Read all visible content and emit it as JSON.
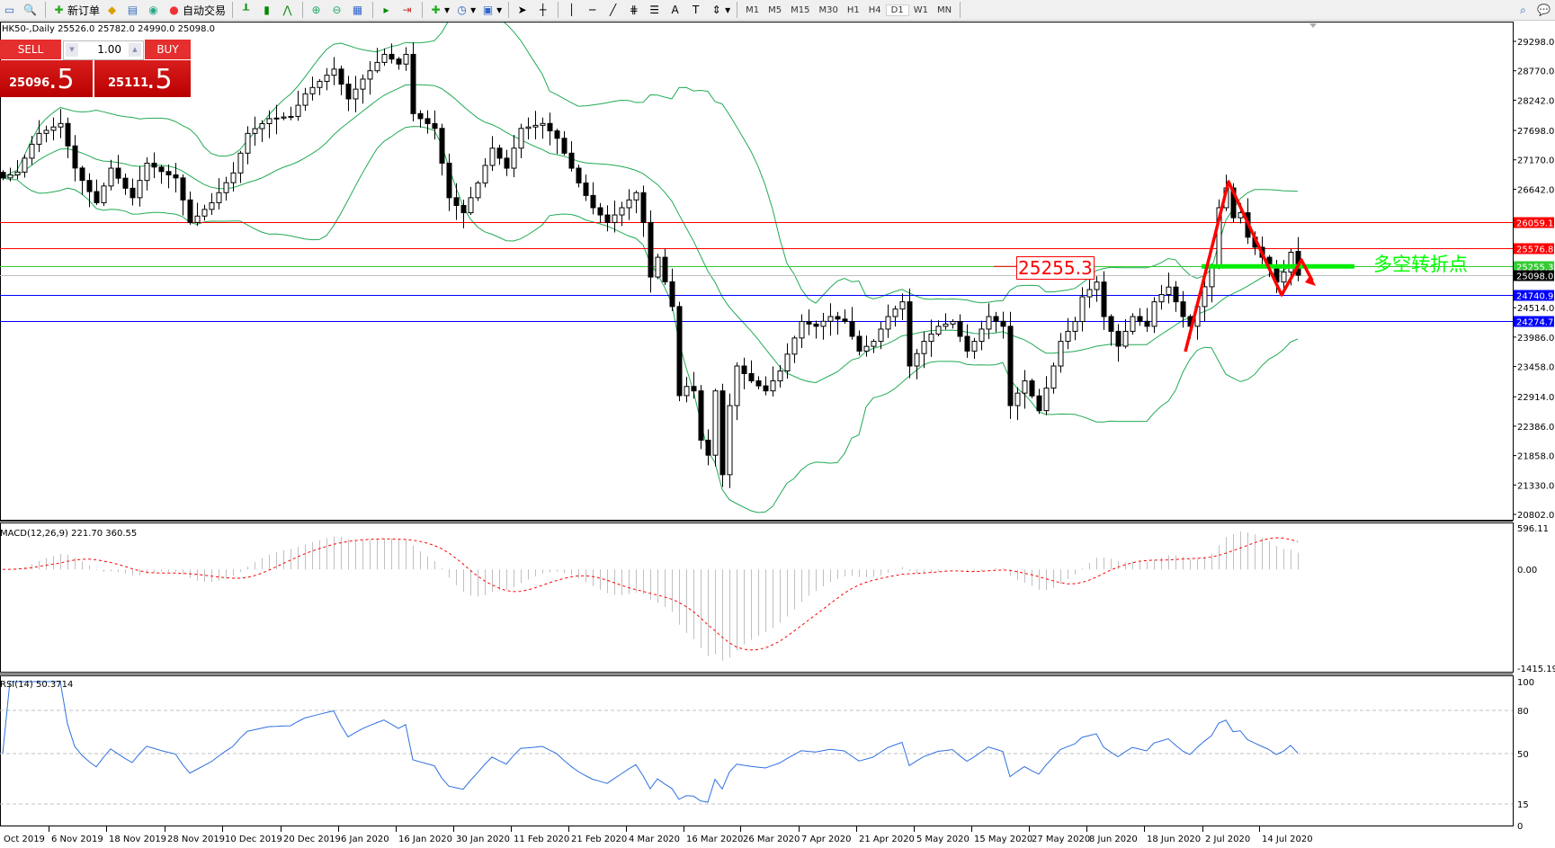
{
  "toolbar": {
    "new_order": "新订单",
    "auto_trading": "自动交易",
    "timeframes": [
      "M1",
      "M5",
      "M15",
      "M30",
      "H1",
      "H4",
      "D1",
      "W1",
      "MN"
    ],
    "active_timeframe": "D1"
  },
  "chart": {
    "title": "HK50-,Daily  25526.0 25782.0 24990.0 25098.0"
  },
  "one_click": {
    "sell_label": "SELL",
    "buy_label": "BUY",
    "lot": "1.00",
    "sell_price_main": "25096",
    "sell_price_pip": ".5",
    "buy_price_main": "25111",
    "buy_price_pip": ".5"
  },
  "annotations": {
    "level_label": "25255.3",
    "pivot_text": "多空转折点"
  },
  "indicators": {
    "macd_label": "MACD(12,26,9) 221.70 360.55",
    "rsi_label": "RSI(14) 50.3714"
  },
  "chart_data": {
    "type": "candlestick",
    "symbol": "HK50-",
    "timeframe": "Daily",
    "last_bar": {
      "open": 25526.0,
      "high": 25782.0,
      "low": 24990.0,
      "close": 25098.0
    },
    "closes": [
      26845,
      26900,
      26950,
      27200,
      27450,
      27645,
      27700,
      27760,
      27823,
      27420,
      27023,
      26800,
      26600,
      26400,
      26700,
      27020,
      26840,
      26660,
      26490,
      26800,
      27110,
      27040,
      26960,
      26900,
      26845,
      26450,
      26045,
      26160,
      26280,
      26400,
      26580,
      26760,
      26935,
      27290,
      27645,
      27730,
      27820,
      27910,
      27920,
      27940,
      27950,
      28150,
      28356,
      28470,
      28580,
      28690,
      28800,
      28530,
      28265,
      28440,
      28620,
      28770,
      28920,
      29065,
      28980,
      28890,
      29065,
      28000,
      27910,
      27820,
      27735,
      27110,
      26490,
      26350,
      26220,
      26490,
      26755,
      27070,
      27380,
      27200,
      27020,
      27380,
      27735,
      27760,
      27790,
      27823,
      27690,
      27557,
      27290,
      27020,
      26755,
      26530,
      26310,
      26180,
      26045,
      26180,
      26310,
      26450,
      26580,
      26045,
      25065,
      25420,
      24980,
      24535,
      22935,
      23100,
      23020,
      22135,
      21865,
      23020,
      21515,
      22756,
      23467,
      23330,
      23200,
      23110,
      23020,
      23200,
      23378,
      23680,
      23970,
      24267,
      24220,
      24180,
      24270,
      24355,
      24310,
      24267,
      24000,
      23735,
      23820,
      23910,
      24130,
      24355,
      24490,
      24620,
      23467,
      23690,
      23910,
      24040,
      24180,
      24220,
      24267,
      24000,
      23735,
      23910,
      24130,
      24355,
      24270,
      24180,
      22756,
      22980,
      23200,
      22930,
      22665,
      23070,
      23467,
      23910,
      24090,
      24267,
      24710,
      24840,
      24975,
      24355,
      24090,
      23823,
      24090,
      24355,
      24270,
      24180,
      24620,
      24750,
      24885,
      24620,
      24355,
      24180,
      24535,
      24890,
      25245,
      26310,
      26665,
      26130,
      26220,
      25780,
      25600,
      25420,
      25245,
      24975,
      25155,
      25510,
      25098
    ],
    "price_axis_ticks": [
      "29298.0",
      "28770.0",
      "28242.0",
      "27698.0",
      "27170.0",
      "26642.0",
      "24514.0",
      "23986.0",
      "23458.0",
      "22914.0",
      "22386.0",
      "21858.0",
      "21330.0",
      "20802.0"
    ],
    "ylim": [
      20802.0,
      29298.0
    ],
    "levels": [
      {
        "price": "26059.1",
        "color": "#ff0000"
      },
      {
        "price": "25576.8",
        "color": "#ff0000"
      },
      {
        "price": "25255.3",
        "color": "#33cc33"
      },
      {
        "price": "25098.0",
        "color": "#000000"
      },
      {
        "price": "24740.9",
        "color": "#0000ff"
      },
      {
        "price": "24274.7",
        "color": "#0000ff"
      }
    ],
    "date_labels": [
      "Oct 2019",
      "6 Nov 2019",
      "18 Nov 2019",
      "28 Nov 2019",
      "10 Dec 2019",
      "20 Dec 2019",
      "6 Jan 2020",
      "16 Jan 2020",
      "30 Jan 2020",
      "11 Feb 2020",
      "21 Feb 2020",
      "4 Mar 2020",
      "16 Mar 2020",
      "26 Mar 2020",
      "7 Apr 2020",
      "21 Apr 2020",
      "5 May 2020",
      "15 May 2020",
      "27 May 2020",
      "8 Jun 2020",
      "18 Jun 2020",
      "2 Jul 2020",
      "14 Jul 2020"
    ],
    "macd_axis": [
      "596.11",
      "0.00",
      "-1415.19"
    ],
    "macd_range": [
      -1415.19,
      596.11
    ],
    "rsi_axis": [
      "100",
      "80",
      "50",
      "15",
      "0"
    ],
    "bollinger_color": "#22aa55",
    "rsi_color": "#3070e0",
    "macd_signal_color": "#ff0000"
  }
}
